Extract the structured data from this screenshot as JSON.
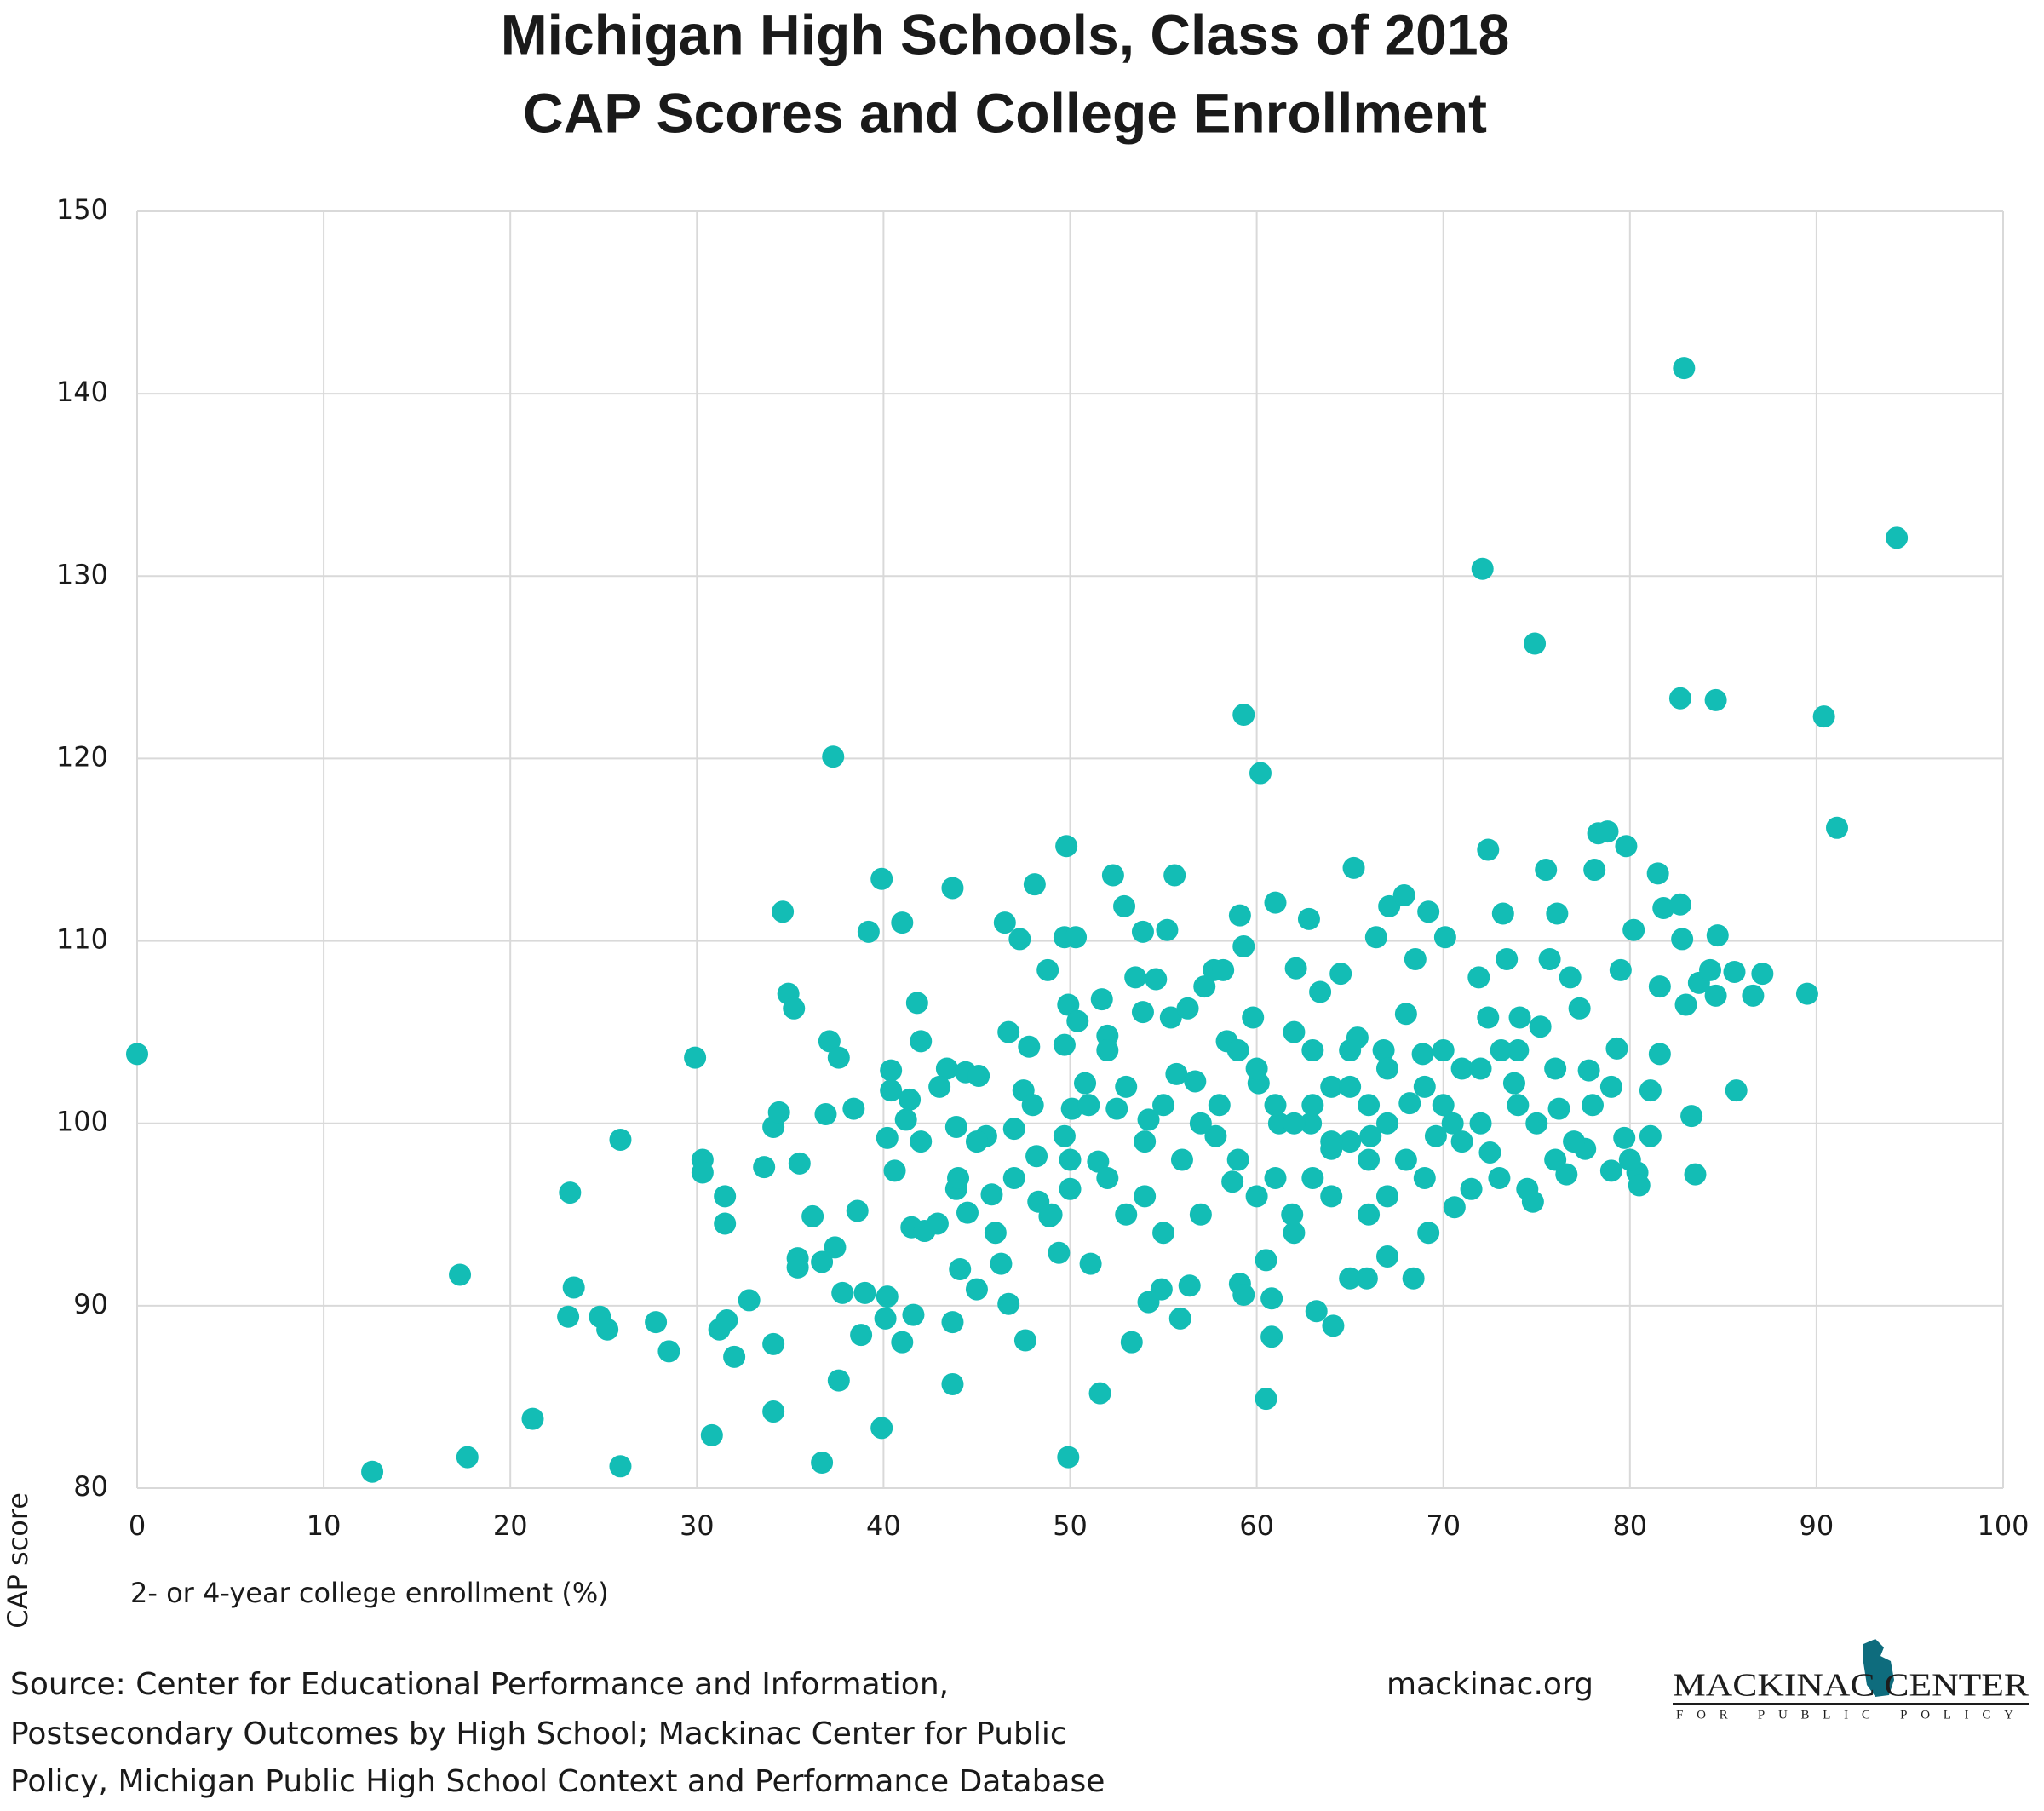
{
  "chart_data": {
    "type": "scatter",
    "title": [
      "Michigan High Schools, Class of 2018",
      "CAP Scores and College Enrollment"
    ],
    "x_label": "2- or 4-year college enrollment (%)",
    "y_label": "CAP score",
    "color": "#13bdb5",
    "grid": true,
    "xlim": [
      0,
      100
    ],
    "xticks": [
      0,
      10,
      20,
      30,
      40,
      50,
      60,
      70,
      80,
      90,
      100
    ],
    "ylim": [
      80,
      150
    ],
    "yticks": [
      80,
      90,
      100,
      110,
      120,
      130,
      140,
      150
    ],
    "x": [
      0,
      12.6,
      17.7,
      17.3,
      21.2,
      23.2,
      23.4,
      23.1,
      24.8,
      25.2,
      25.9,
      25.9,
      27.8,
      28.5,
      29.9,
      30.3,
      30.3,
      30.8,
      31.2,
      31.5,
      31.5,
      31.6,
      32.0,
      32.8,
      33.6,
      34.1,
      34.1,
      34.1,
      34.4,
      34.6,
      34.9,
      35.2,
      35.4,
      35.4,
      35.5,
      36.2,
      36.7,
      36.7,
      36.9,
      37.1,
      37.3,
      37.4,
      37.6,
      37.6,
      37.8,
      38.4,
      38.6,
      38.8,
      39.2,
      39.0,
      39.9,
      39.9,
      40.1,
      40.2,
      40.4,
      40.4,
      40.2,
      40.6,
      41.0,
      41.0,
      41.2,
      41.4,
      41.5,
      41.6,
      41.8,
      42.0,
      42.2,
      42.9,
      43.4,
      43.7,
      43.7,
      43.7,
      43.9,
      43.9,
      44.1,
      44.4,
      44.5,
      45.0,
      45.1,
      45.5,
      45.8,
      46.3,
      46.5,
      46.7,
      46.7,
      47.0,
      47.3,
      47.5,
      47.6,
      47.8,
      48.1,
      48.2,
      48.3,
      48.8,
      48.9,
      49.4,
      49.8,
      49.9,
      49.7,
      49.9,
      49.7,
      49.7,
      50.0,
      50.1,
      50.3,
      50.4,
      50.8,
      51.1,
      51.6,
      51.5,
      51.7,
      52.0,
      52.3,
      52.5,
      52.9,
      53.3,
      53.5,
      53.9,
      53.9,
      54.2,
      54.2,
      54.6,
      54.9,
      55.2,
      55.6,
      55.4,
      55.7,
      55.9,
      56.3,
      56.4,
      56.7,
      57.2,
      57.7,
      57.8,
      58.2,
      58.4,
      58.7,
      59.1,
      59.3,
      59.3,
      59.1,
      59.3,
      59.8,
      60.2,
      60.1,
      60.5,
      60.8,
      60.8,
      61.0,
      60.5,
      61.2,
      61.9,
      62.1,
      62.8,
      62.9,
      63.2,
      63.4,
      64.1,
      64.0,
      64.5,
      65.0,
      65.2,
      65.4,
      65.9,
      66.1,
      66.4,
      66.8,
      67.0,
      67.1,
      67.9,
      68.2,
      68.4,
      68.5,
      68.9,
      69.2,
      69.2,
      69.6,
      70.1,
      70.5,
      70.6,
      71.5,
      71.9,
      72.1,
      72.4,
      72.4,
      72.5,
      73.1,
      73.2,
      73.4,
      73.8,
      74.1,
      74.5,
      74.9,
      74.8,
      75.2,
      75.5,
      75.7,
      76.1,
      76.2,
      76.6,
      76.8,
      77.3,
      77.6,
      77.8,
      78.1,
      78.3,
      78.8,
      79.0,
      79.3,
      79.5,
      79.7,
      79.8,
      80.2,
      80.4,
      80.5,
      81.1,
      81.1,
      81.5,
      81.6,
      81.6,
      81.8,
      82.7,
      82.7,
      82.9,
      82.8,
      83.0,
      83.3,
      83.5,
      83.7,
      84.3,
      84.6,
      84.7,
      84.6,
      85.6,
      85.7,
      86.6,
      87.1,
      89.5,
      90.4,
      91.1,
      94.3,
      58,
      60,
      62,
      63,
      64,
      65,
      66,
      67,
      68,
      69,
      70,
      71,
      72,
      73,
      74,
      56,
      57,
      59,
      61,
      62,
      63,
      64,
      65,
      66,
      67,
      68,
      69,
      70,
      71,
      72,
      52,
      53,
      54,
      55,
      50,
      51,
      52,
      53,
      54,
      55,
      57,
      59,
      60,
      61,
      62,
      63,
      64,
      65,
      66,
      67,
      75,
      76,
      77,
      78,
      79,
      80,
      45,
      47,
      48,
      49,
      46,
      44,
      42,
      43,
      76,
      74
    ],
    "values": [
      103.8,
      80.9,
      81.7,
      91.7,
      83.8,
      96.2,
      91.0,
      89.4,
      89.4,
      88.7,
      99.1,
      81.2,
      89.1,
      87.5,
      103.6,
      98.0,
      97.3,
      82.9,
      88.7,
      96.0,
      94.5,
      89.2,
      87.2,
      90.3,
      97.6,
      99.8,
      87.9,
      84.2,
      100.6,
      111.6,
      107.1,
      106.3,
      92.6,
      92.1,
      97.8,
      94.9,
      92.4,
      81.4,
      100.5,
      104.5,
      120.1,
      93.2,
      103.6,
      85.9,
      90.7,
      100.8,
      95.2,
      88.4,
      110.5,
      90.7,
      113.4,
      83.3,
      89.3,
      90.5,
      102.9,
      101.8,
      99.2,
      97.4,
      111.0,
      88.0,
      100.2,
      101.3,
      94.3,
      89.5,
      106.6,
      104.5,
      94.1,
      94.5,
      103.0,
      112.9,
      89.1,
      85.7,
      99.8,
      96.4,
      92.0,
      102.8,
      95.1,
      90.9,
      102.6,
      99.3,
      96.1,
      92.3,
      111.0,
      105.0,
      90.1,
      99.7,
      110.1,
      101.8,
      88.1,
      104.2,
      113.1,
      98.2,
      95.7,
      108.4,
      94.9,
      92.9,
      115.2,
      81.7,
      110.2,
      106.5,
      104.3,
      99.3,
      96.4,
      100.8,
      110.2,
      105.6,
      102.2,
      92.3,
      85.2,
      97.9,
      106.8,
      104.8,
      113.6,
      100.8,
      111.9,
      88.0,
      108.0,
      110.5,
      106.1,
      90.2,
      100.2,
      107.9,
      90.9,
      110.6,
      113.6,
      105.8,
      102.7,
      89.3,
      106.3,
      91.1,
      102.3,
      107.5,
      108.4,
      99.3,
      108.4,
      104.5,
      96.8,
      111.4,
      122.4,
      109.7,
      91.2,
      90.6,
      105.8,
      119.2,
      102.2,
      84.9,
      90.4,
      88.3,
      112.1,
      92.5,
      100.0,
      95.0,
      108.5,
      111.2,
      100.0,
      89.7,
      107.2,
      88.9,
      98.6,
      108.2,
      91.5,
      114.0,
      104.7,
      91.5,
      99.3,
      110.2,
      104.0,
      92.7,
      111.9,
      112.5,
      101.1,
      91.5,
      109.0,
      103.8,
      111.6,
      94.0,
      99.3,
      110.2,
      100.0,
      95.4,
      96.4,
      108.0,
      130.4,
      115.0,
      105.8,
      98.4,
      104.0,
      111.5,
      109.0,
      102.2,
      105.8,
      96.4,
      126.3,
      95.7,
      105.3,
      113.9,
      109.0,
      111.5,
      100.8,
      97.2,
      108.0,
      106.3,
      98.6,
      102.9,
      113.9,
      115.9,
      116.0,
      97.4,
      104.1,
      108.4,
      99.2,
      115.2,
      110.6,
      97.3,
      96.6,
      101.8,
      99.3,
      113.7,
      103.8,
      107.5,
      111.8,
      123.3,
      112.0,
      141.4,
      110.1,
      106.5,
      100.4,
      97.2,
      107.7,
      108.4,
      123.2,
      110.3,
      107.0,
      108.3,
      101.8,
      107.0,
      108.2,
      107.1,
      122.3,
      116.2,
      132.1,
      101,
      103,
      100,
      97,
      102,
      99,
      101,
      103,
      98,
      102,
      101,
      103,
      100,
      97,
      101,
      98,
      95,
      104,
      97,
      105,
      101,
      96,
      104,
      95,
      100,
      106,
      97,
      104,
      99,
      103,
      97,
      95,
      99,
      101,
      98,
      101,
      104,
      102,
      96,
      94,
      100,
      98,
      96,
      101,
      94,
      104,
      99,
      102,
      98,
      96,
      100,
      103,
      99,
      101,
      102,
      98,
      99,
      97,
      101,
      95,
      94,
      97,
      99,
      102,
      98,
      104
    ],
    "source": [
      "Source: Center for Educational Performance and Information,",
      "Postsecondary Outcomes by High School; Mackinac Center for Public",
      "Policy, Michigan Public High School Context and Performance Database"
    ],
    "website": "mackinac.org",
    "logo": {
      "name": "MACKINAC CENTER",
      "tagline": "FOR PUBLIC POLICY"
    }
  }
}
